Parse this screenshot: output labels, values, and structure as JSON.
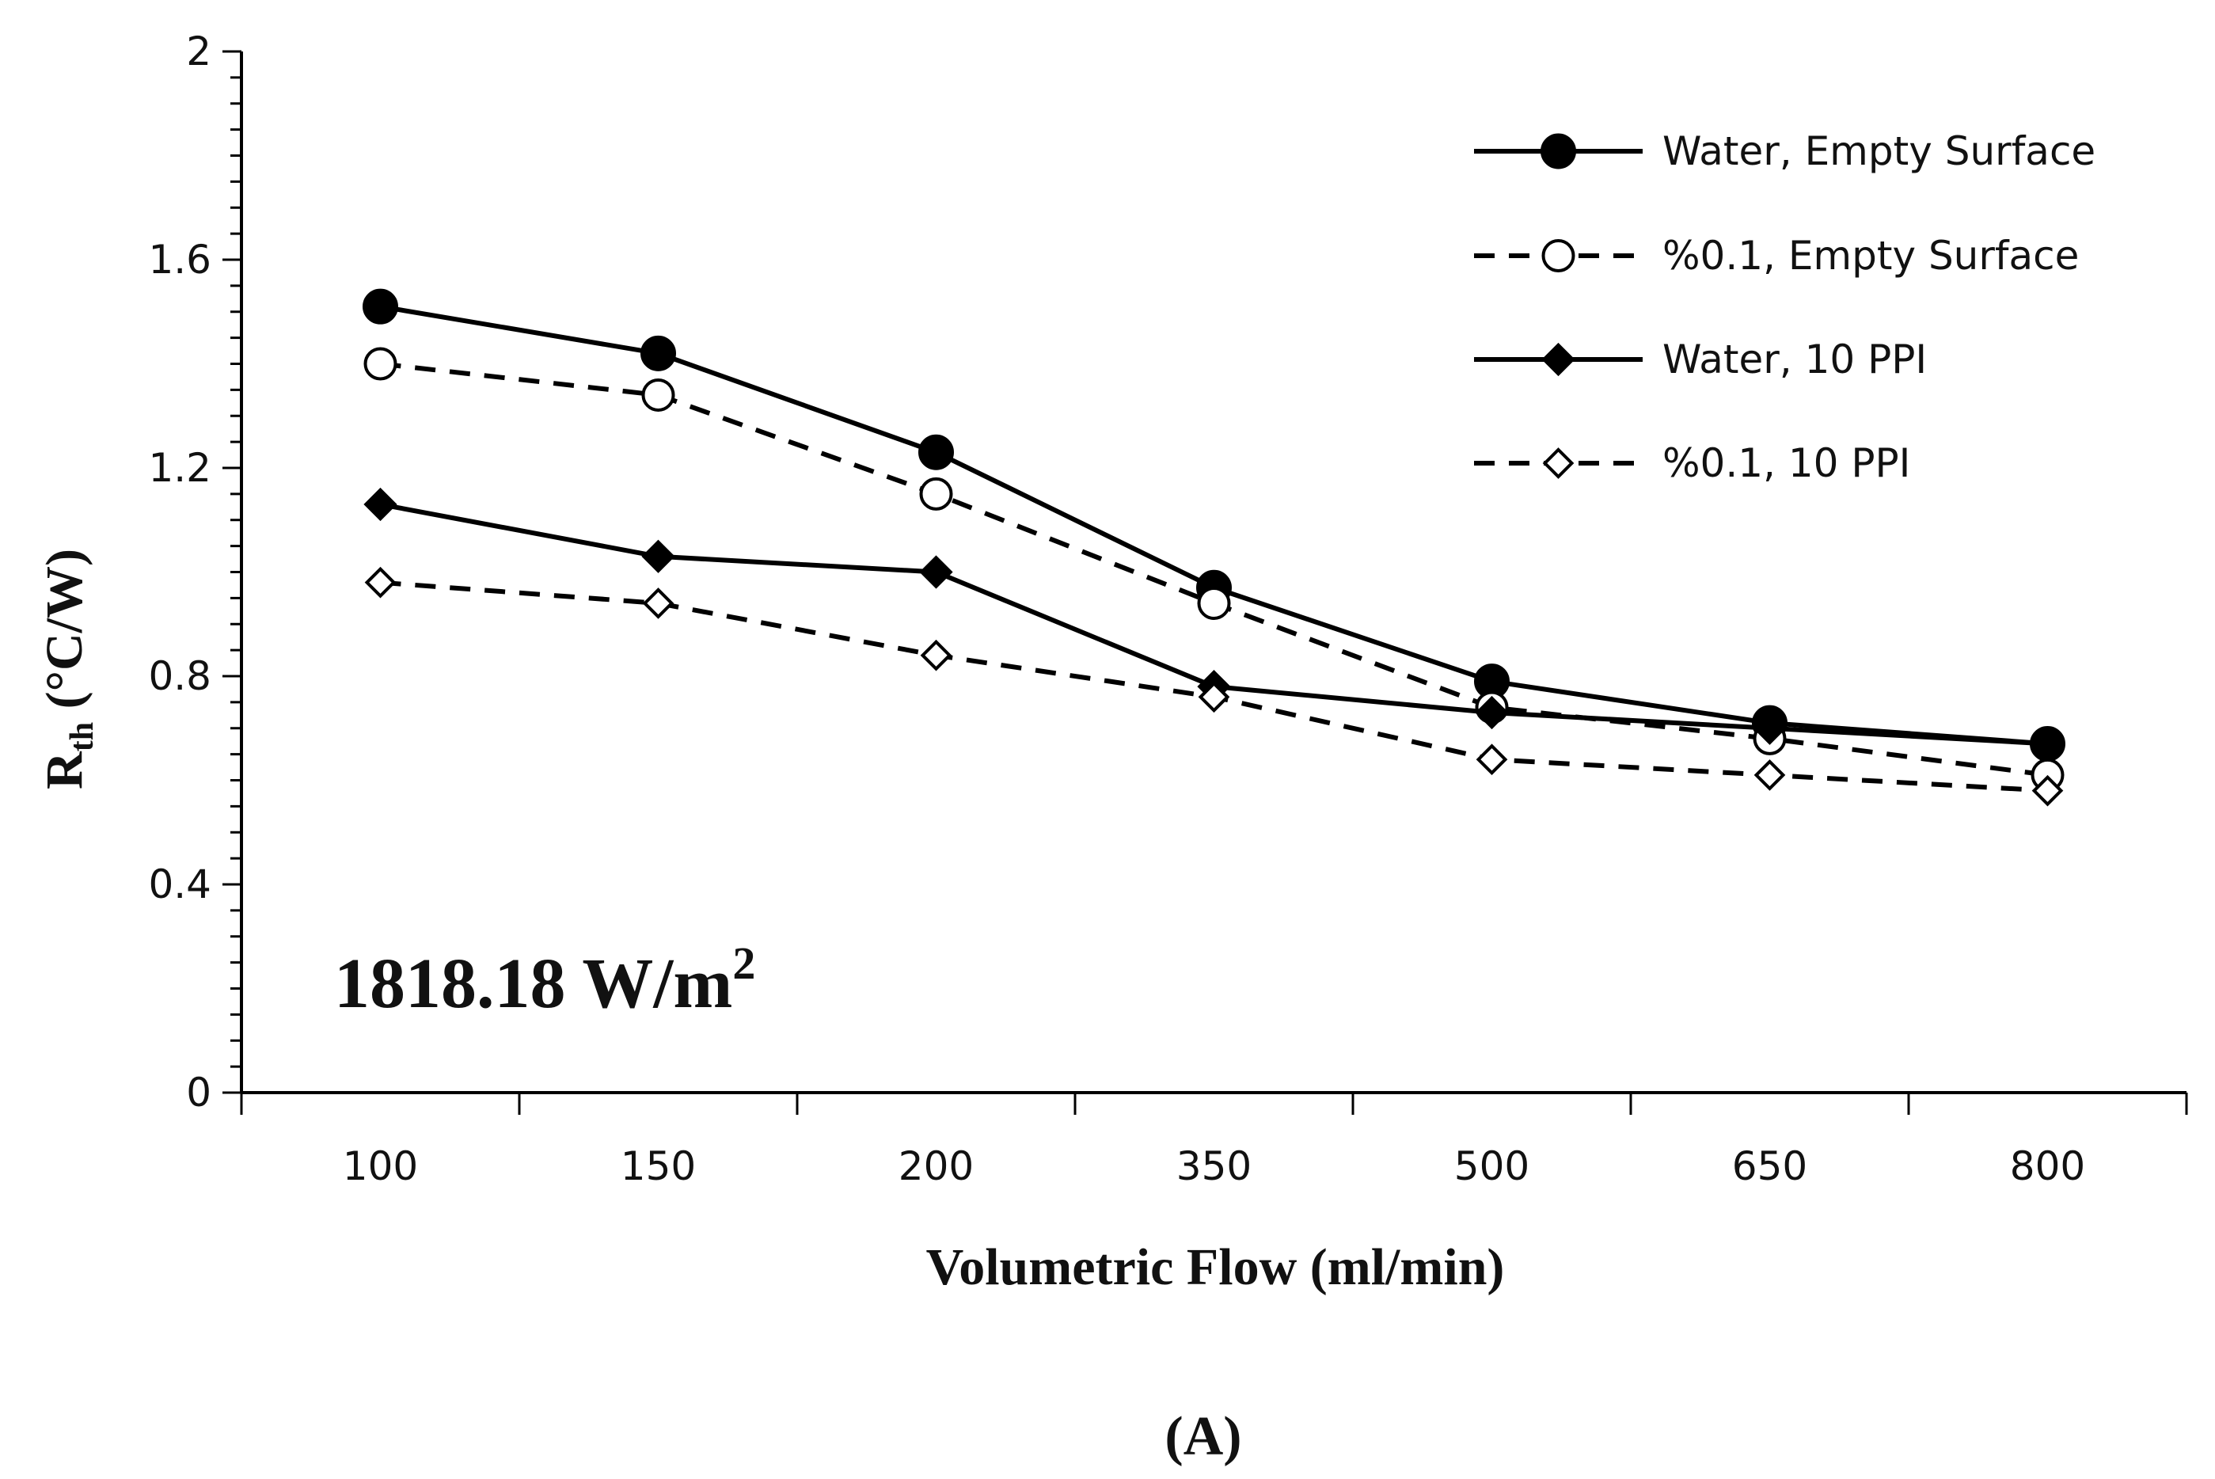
{
  "chart_data": {
    "type": "line",
    "categories": [
      "100",
      "150",
      "200",
      "350",
      "500",
      "650",
      "800"
    ],
    "series": [
      {
        "name": "Water, Empty Surface",
        "line": "solid",
        "marker": "circle-filled",
        "values": [
          1.51,
          1.42,
          1.23,
          0.97,
          0.79,
          0.71,
          0.67
        ]
      },
      {
        "name": "%0.1, Empty Surface",
        "line": "dashed",
        "marker": "circle-open",
        "values": [
          1.4,
          1.34,
          1.15,
          0.94,
          0.74,
          0.68,
          0.61
        ]
      },
      {
        "name": "Water, 10 PPI",
        "line": "solid",
        "marker": "diamond-filled",
        "values": [
          1.13,
          1.03,
          1.0,
          0.78,
          0.73,
          0.7,
          0.67
        ]
      },
      {
        "name": "%0.1, 10 PPI",
        "line": "dashed",
        "marker": "diamond-open",
        "values": [
          0.98,
          0.94,
          0.84,
          0.76,
          0.64,
          0.61,
          0.58
        ]
      }
    ],
    "xlabel": "Volumetric Flow (ml/min)",
    "ylabel": {
      "main": "R",
      "sub": "th",
      "unit": "(°C/W)"
    },
    "ylim": [
      0,
      2
    ],
    "yticks": [
      "0",
      "0.4",
      "0.8",
      "1.2",
      "1.6",
      "2"
    ],
    "grid": false,
    "legend_position": "top-right",
    "annotation": {
      "text": "1818.18 W/m",
      "sup": "2"
    },
    "caption": "(A)"
  },
  "colors": {
    "ink": "#000000",
    "background": "#ffffff"
  }
}
